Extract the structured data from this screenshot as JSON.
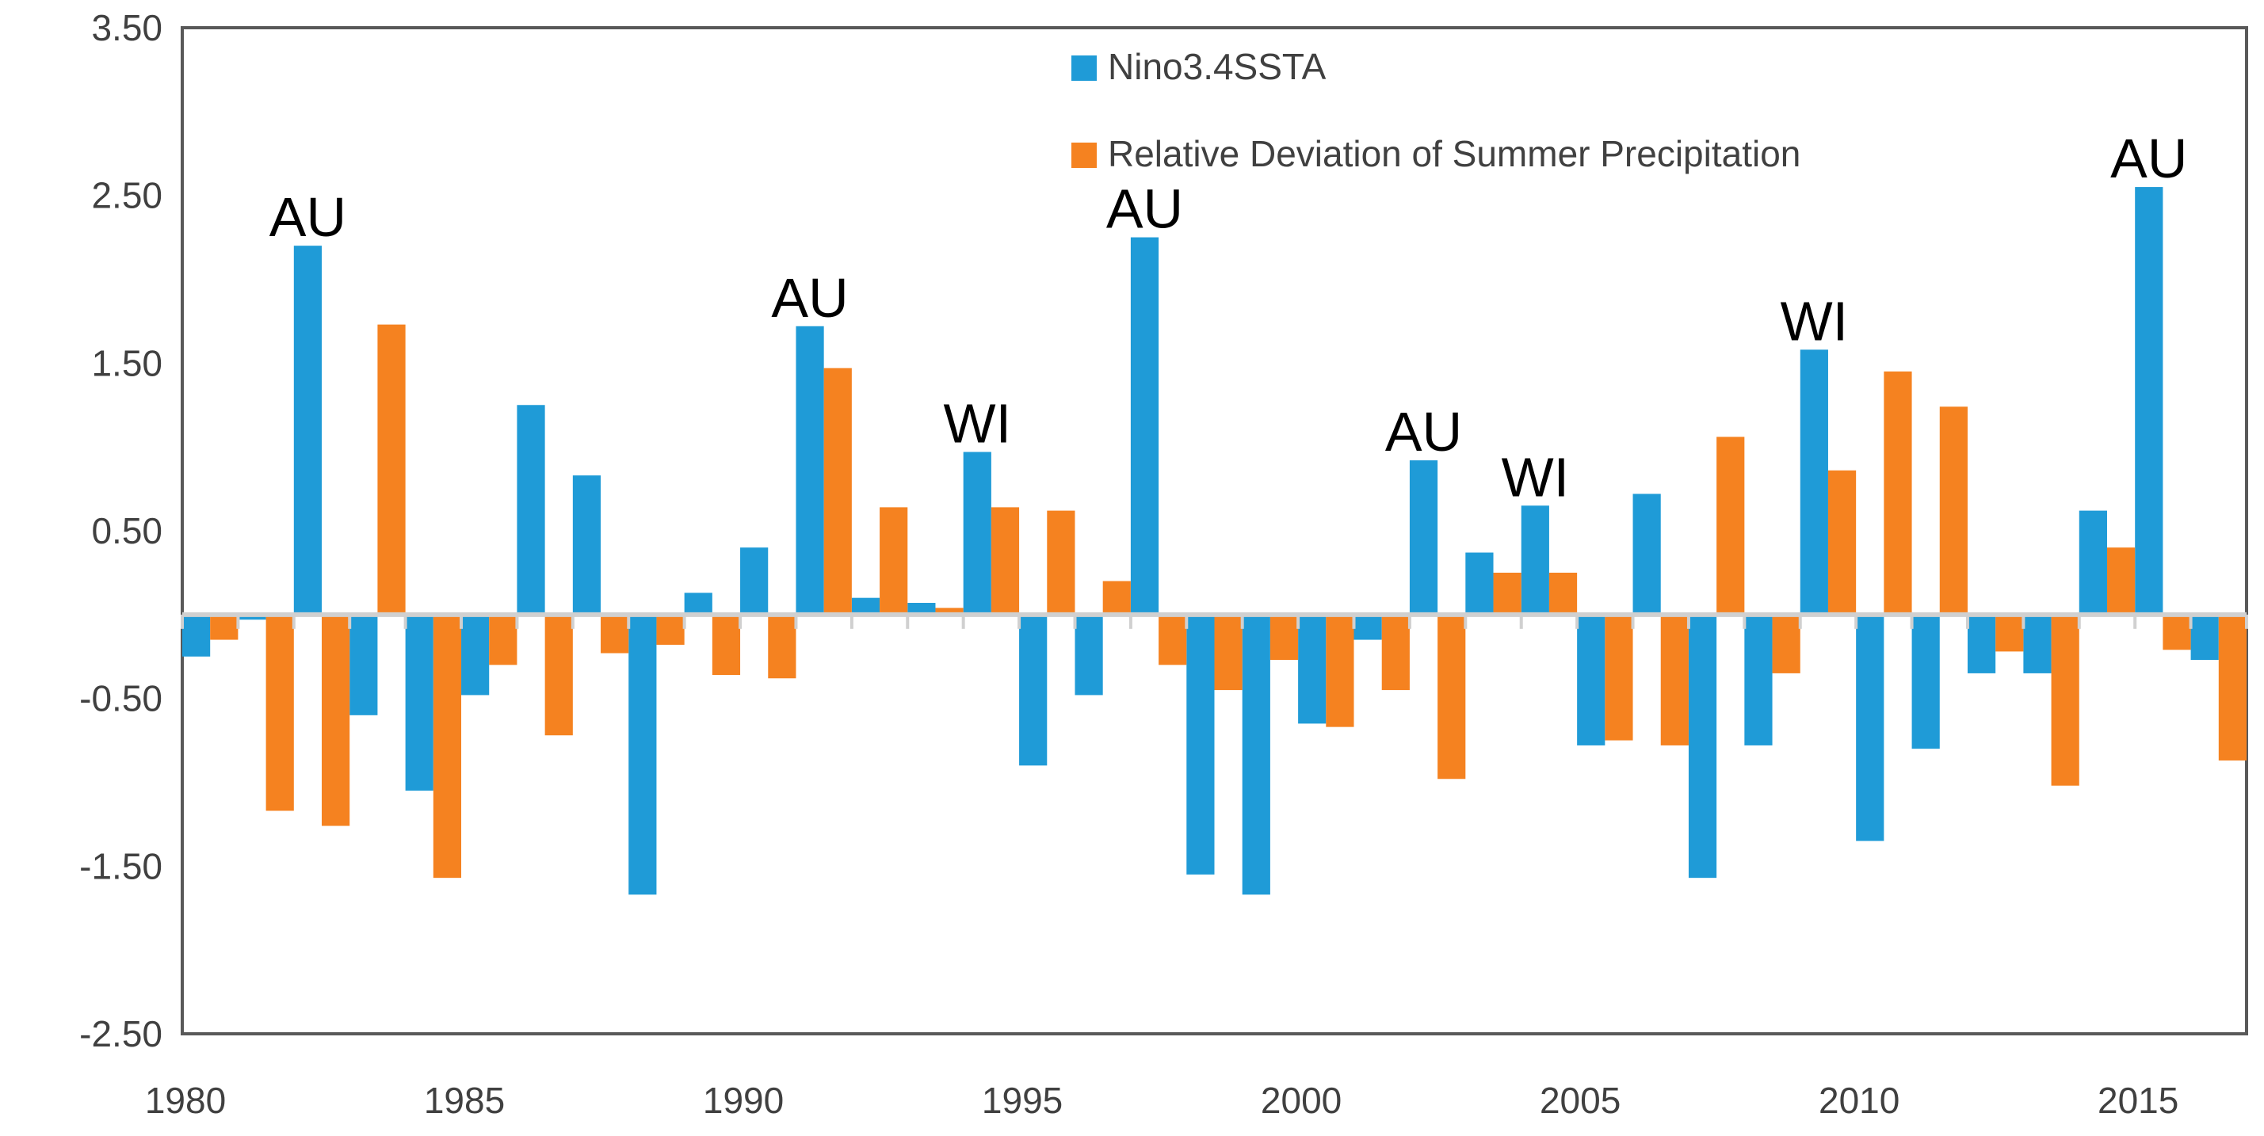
{
  "chart_data": {
    "type": "bar",
    "title": "",
    "xlabel": "",
    "ylabel": "",
    "ylim": [
      -2.5,
      3.5
    ],
    "yticks": [
      3.5,
      2.5,
      1.5,
      0.5,
      -0.5,
      -1.5,
      -2.5
    ],
    "ytick_labels": [
      "3.50",
      "2.50",
      "1.50",
      "0.50",
      "-0.50",
      "-1.50",
      "-2.50"
    ],
    "xtick_labels": [
      "1980",
      "1985",
      "1990",
      "1995",
      "2000",
      "2005",
      "2010",
      "2015"
    ],
    "xtick_years": [
      1980,
      1985,
      1990,
      1995,
      2000,
      2005,
      2010,
      2015
    ],
    "categories": [
      1980,
      1981,
      1982,
      1983,
      1984,
      1985,
      1986,
      1987,
      1988,
      1989,
      1990,
      1991,
      1992,
      1993,
      1994,
      1995,
      1996,
      1997,
      1998,
      1999,
      2000,
      2001,
      2002,
      2003,
      2004,
      2005,
      2006,
      2007,
      2008,
      2009,
      2010,
      2011,
      2012,
      2013,
      2014,
      2015,
      2016
    ],
    "series": [
      {
        "name": "Nino3.4SSTA",
        "color": "#1f9bd7",
        "values": [
          -0.25,
          -0.03,
          2.2,
          -0.6,
          -1.05,
          -0.48,
          1.25,
          0.83,
          -1.67,
          0.13,
          0.4,
          1.72,
          0.1,
          0.07,
          0.97,
          -0.9,
          -0.48,
          2.25,
          -1.55,
          -1.67,
          -0.65,
          -0.15,
          0.92,
          0.37,
          0.65,
          -0.78,
          0.72,
          -1.57,
          -0.78,
          1.58,
          -1.35,
          -0.8,
          -0.35,
          -0.35,
          0.62,
          2.55,
          -0.27
        ]
      },
      {
        "name": "Relative Deviation of Summer Precipitation",
        "color": "#f58220",
        "values": [
          -0.15,
          -1.17,
          -1.26,
          1.73,
          -1.57,
          -0.3,
          -0.72,
          -0.23,
          -0.18,
          -0.36,
          -0.38,
          1.47,
          0.64,
          0.04,
          0.64,
          0.62,
          0.2,
          -0.3,
          -0.45,
          -0.27,
          -0.67,
          -0.45,
          -0.98,
          0.25,
          0.25,
          -0.75,
          -0.78,
          1.06,
          -0.35,
          0.86,
          1.45,
          1.24,
          -0.22,
          -1.02,
          0.4,
          -0.21,
          -0.87
        ]
      }
    ],
    "legend": {
      "placement": "top-center"
    },
    "annotations": [
      {
        "text": "AU",
        "year": 1982,
        "series": "Nino3.4SSTA"
      },
      {
        "text": "AU",
        "year": 1991,
        "series": "Nino3.4SSTA"
      },
      {
        "text": "WI",
        "year": 1994,
        "series": "Nino3.4SSTA"
      },
      {
        "text": "AU",
        "year": 1997,
        "series": "Nino3.4SSTA"
      },
      {
        "text": "AU",
        "year": 2002,
        "series": "Nino3.4SSTA"
      },
      {
        "text": "WI",
        "year": 2004,
        "series": "Nino3.4SSTA"
      },
      {
        "text": "WI",
        "year": 2009,
        "series": "Nino3.4SSTA"
      },
      {
        "text": "AU",
        "year": 2015,
        "series": "Nino3.4SSTA"
      }
    ]
  }
}
